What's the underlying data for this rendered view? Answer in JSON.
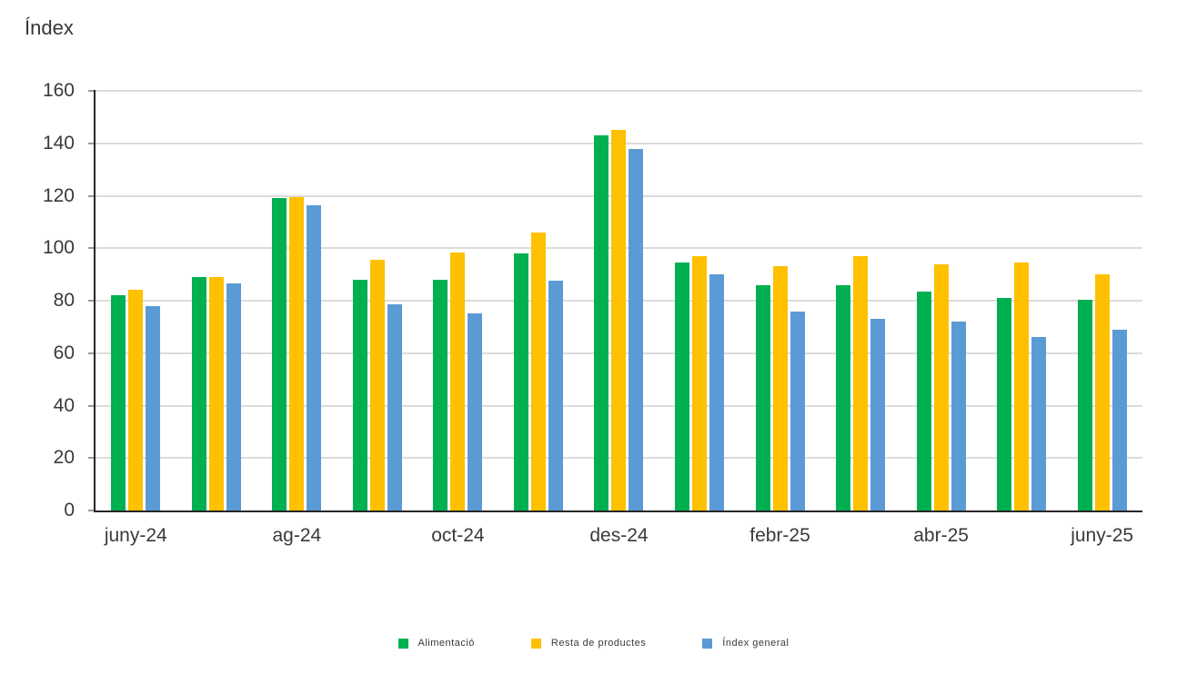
{
  "title": "Índex",
  "chart_data": {
    "type": "bar",
    "title": "Índex",
    "ylabel": "Índex",
    "xlabel": "",
    "ylim": [
      0,
      160
    ],
    "yticks": [
      0,
      20,
      40,
      60,
      80,
      100,
      120,
      140,
      160
    ],
    "grid": "horizontal",
    "legend_position": "bottom",
    "categories": [
      "juny-24",
      "",
      "ag-24",
      "",
      "oct-24",
      "",
      "des-24",
      "",
      "febr-25",
      "",
      "abr-25",
      "",
      "juny-25"
    ],
    "series": [
      {
        "name": "Alimentació",
        "color": "#00B050",
        "values": [
          82,
          89,
          119,
          88,
          88,
          98,
          143,
          94.5,
          86,
          86,
          83.5,
          81,
          80.5
        ]
      },
      {
        "name": "Resta de productes",
        "color": "#FFC000",
        "values": [
          84,
          89,
          119.5,
          95.5,
          98.5,
          106,
          145,
          97,
          93,
          97,
          94,
          94.5,
          90
        ]
      },
      {
        "name": "Índex general",
        "color": "#5B9BD5",
        "values": [
          78,
          86.5,
          116.5,
          78.5,
          75,
          87.5,
          138,
          90,
          76,
          73,
          72,
          66,
          69
        ]
      }
    ],
    "colors": {
      "gridline": "#DCDCDC",
      "axis": "#262626",
      "text": "#3A3A3A"
    }
  }
}
